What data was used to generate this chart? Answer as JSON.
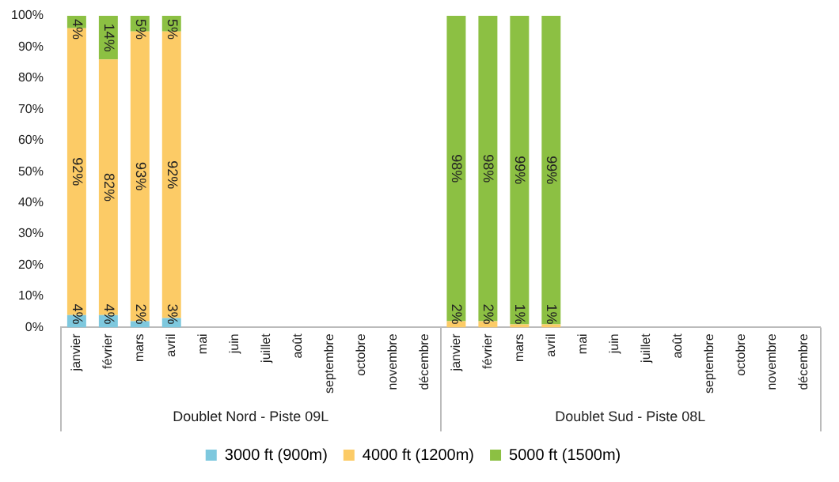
{
  "chart_data": {
    "type": "bar",
    "stacked": true,
    "categories": [
      "janvier",
      "février",
      "mars",
      "avril",
      "mai",
      "juin",
      "juillet",
      "août",
      "septembre",
      "octobre",
      "novembre",
      "décembre",
      "janvier",
      "février",
      "mars",
      "avril",
      "mai",
      "juin",
      "juillet",
      "août",
      "septembre",
      "octobre",
      "novembre",
      "décembre"
    ],
    "annotations": [
      "Doublet Nord - Piste 09L",
      "Doublet Sud - Piste 08L"
    ],
    "series": [
      {
        "name": "3000 ft (900m)",
        "color": "#7ec8de",
        "values": [
          4,
          4,
          2,
          3,
          null,
          null,
          null,
          null,
          null,
          null,
          null,
          null,
          0,
          0,
          0,
          0,
          null,
          null,
          null,
          null,
          null,
          null,
          null,
          null
        ],
        "value_labels": [
          "4%",
          "4%",
          "2%",
          "3%",
          null,
          null,
          null,
          null,
          null,
          null,
          null,
          null,
          null,
          null,
          null,
          null,
          null,
          null,
          null,
          null,
          null,
          null,
          null,
          null
        ]
      },
      {
        "name": "4000 ft (1200m)",
        "color": "#fccb66",
        "values": [
          92,
          82,
          93,
          92,
          null,
          null,
          null,
          null,
          null,
          null,
          null,
          null,
          2,
          2,
          1,
          1,
          null,
          null,
          null,
          null,
          null,
          null,
          null,
          null
        ],
        "value_labels": [
          "92%",
          "82%",
          "93%",
          "92%",
          null,
          null,
          null,
          null,
          null,
          null,
          null,
          null,
          "2%",
          "2%",
          "1%",
          "1%",
          null,
          null,
          null,
          null,
          null,
          null,
          null,
          null
        ]
      },
      {
        "name": "5000 ft (1500m)",
        "color": "#8cc043",
        "values": [
          4,
          14,
          5,
          5,
          null,
          null,
          null,
          null,
          null,
          null,
          null,
          null,
          98,
          98,
          99,
          99,
          null,
          null,
          null,
          null,
          null,
          null,
          null,
          null
        ],
        "value_labels": [
          "4%",
          "14%",
          "5%",
          "5%",
          null,
          null,
          null,
          null,
          null,
          null,
          null,
          null,
          "98%",
          "98%",
          "99%",
          "99%",
          null,
          null,
          null,
          null,
          null,
          null,
          null,
          null
        ]
      }
    ],
    "ylim": [
      0,
      100
    ],
    "yticks": [
      {
        "value": 0,
        "label": "0%"
      },
      {
        "value": 10,
        "label": "10%"
      },
      {
        "value": 20,
        "label": "20%"
      },
      {
        "value": 30,
        "label": "30%"
      },
      {
        "value": 40,
        "label": "40%"
      },
      {
        "value": 50,
        "label": "50%"
      },
      {
        "value": 60,
        "label": "60%"
      },
      {
        "value": 70,
        "label": "70%"
      },
      {
        "value": 80,
        "label": "80%"
      },
      {
        "value": 90,
        "label": "90%"
      },
      {
        "value": 100,
        "label": "100%"
      }
    ],
    "grid": false,
    "legend": "bottom"
  }
}
